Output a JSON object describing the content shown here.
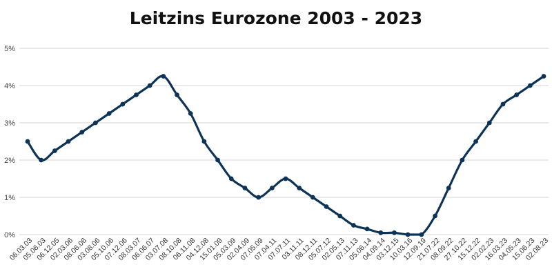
{
  "chart_data": {
    "type": "line",
    "title": "Leitzins Eurozone 2003 - 2023",
    "xlabel": "",
    "ylabel": "",
    "ylim": [
      0,
      5
    ],
    "y_ticks": [
      "0%",
      "1%",
      "2%",
      "3%",
      "4%",
      "5%"
    ],
    "grid": true,
    "legend": "none",
    "line_color": "#0d3356",
    "categories": [
      "06.03.03",
      "05.06.03",
      "06.12.05",
      "02.03.06",
      "08.06.06",
      "03.08.06",
      "05.10.06",
      "07.12.06",
      "08.03.07",
      "06.06.07",
      "03.07.08",
      "08.10.08",
      "06.11.08",
      "04.12.08",
      "15.01.09",
      "05.03.09",
      "02.04.09",
      "07.05.09",
      "07.04.11",
      "07.07.11",
      "03.11.11",
      "08.12.11",
      "05.07.12",
      "02.05.13",
      "07.11.13",
      "05.06.14",
      "04.09.14",
      "03.12.15",
      "10.03.16",
      "12.09.19",
      "21.07.22",
      "08.09.22",
      "27.10.22",
      "15.12.22",
      "02.02.23",
      "16.03.23",
      "04.05.23",
      "15.06.23",
      "02.08.23"
    ],
    "series": [
      {
        "values": [
          2.5,
          2.0,
          2.25,
          2.5,
          2.75,
          3.0,
          3.25,
          3.5,
          3.75,
          4.0,
          4.25,
          3.75,
          3.25,
          2.5,
          2.0,
          1.5,
          1.25,
          1.0,
          1.25,
          1.5,
          1.25,
          1.0,
          0.75,
          0.5,
          0.25,
          0.15,
          0.05,
          0.05,
          0.0,
          0.0,
          0.5,
          1.25,
          2.0,
          2.5,
          3.0,
          3.5,
          3.75,
          4.0,
          4.25
        ]
      }
    ]
  }
}
